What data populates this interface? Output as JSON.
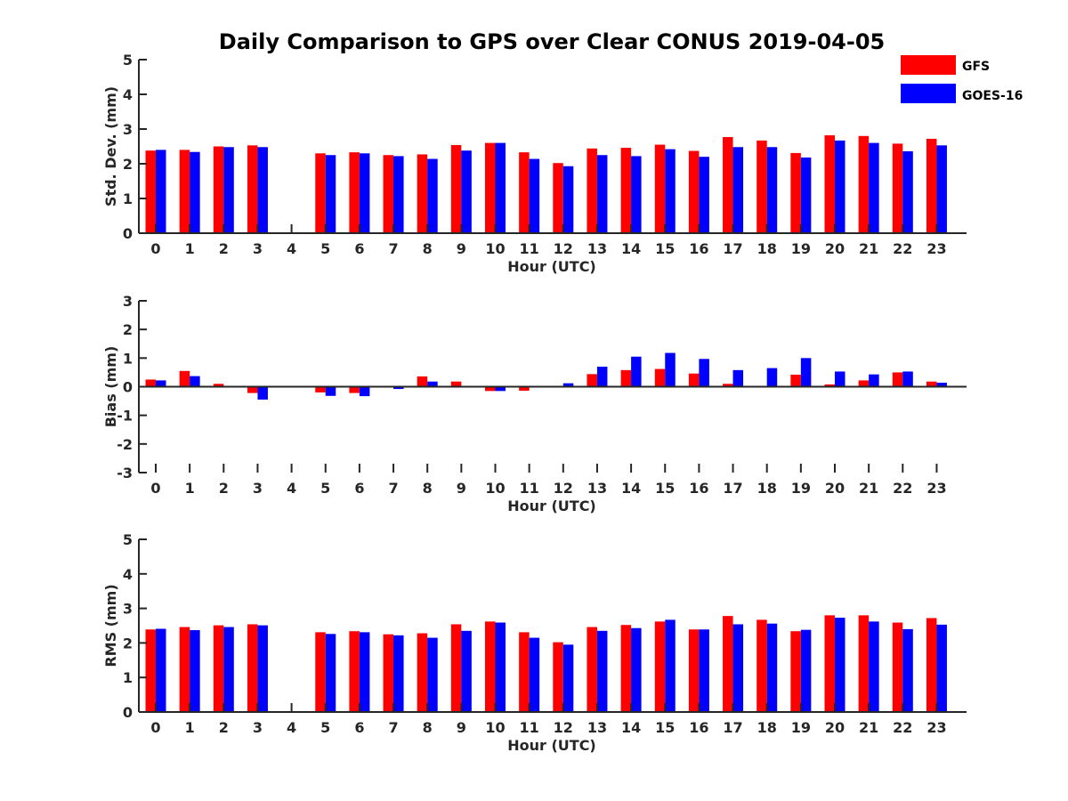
{
  "chart_data": {
    "type": "bar",
    "title": "Daily Comparison to GPS over Clear CONUS 2019-04-05",
    "legend": {
      "position": "top-right",
      "entries": [
        {
          "name": "GFS",
          "color": "#ff0000"
        },
        {
          "name": "GOES-16",
          "color": "#0000ff"
        }
      ]
    },
    "categories": [
      "0",
      "1",
      "2",
      "3",
      "4",
      "5",
      "6",
      "7",
      "8",
      "9",
      "10",
      "11",
      "12",
      "13",
      "14",
      "15",
      "16",
      "17",
      "18",
      "19",
      "20",
      "21",
      "22",
      "23"
    ],
    "panels": [
      {
        "id": "std",
        "xlabel": "Hour (UTC)",
        "ylabel": "Std. Dev. (mm)",
        "ylim": [
          0,
          5
        ],
        "yticks": [
          "0",
          "1",
          "2",
          "3",
          "4",
          "5"
        ],
        "series": [
          {
            "name": "GFS",
            "values": [
              2.38,
              2.4,
              2.5,
              2.53,
              null,
              2.3,
              2.33,
              2.25,
              2.27,
              2.54,
              2.6,
              2.33,
              2.02,
              2.44,
              2.46,
              2.55,
              2.37,
              2.77,
              2.67,
              2.31,
              2.82,
              2.8,
              2.58,
              2.72
            ]
          },
          {
            "name": "GOES-16",
            "values": [
              2.4,
              2.34,
              2.48,
              2.48,
              null,
              2.25,
              2.3,
              2.22,
              2.14,
              2.38,
              2.6,
              2.14,
              1.93,
              2.25,
              2.22,
              2.42,
              2.2,
              2.48,
              2.48,
              2.18,
              2.67,
              2.6,
              2.36,
              2.53
            ]
          }
        ]
      },
      {
        "id": "bias",
        "xlabel": "Hour (UTC)",
        "ylabel": "Bias (mm)",
        "ylim": [
          -3,
          3
        ],
        "yticks": [
          "-3",
          "-2",
          "-1",
          "0",
          "1",
          "2",
          "3"
        ],
        "series": [
          {
            "name": "GFS",
            "values": [
              0.25,
              0.55,
              0.1,
              -0.22,
              null,
              -0.2,
              -0.22,
              0.03,
              0.36,
              0.18,
              -0.15,
              -0.14,
              0.01,
              0.44,
              0.58,
              0.62,
              0.46,
              0.1,
              0.03,
              0.42,
              0.08,
              0.22,
              0.5,
              0.18
            ]
          },
          {
            "name": "GOES-16",
            "values": [
              0.22,
              0.37,
              -0.03,
              -0.45,
              null,
              -0.32,
              -0.33,
              -0.08,
              0.18,
              0.03,
              -0.15,
              -0.03,
              0.12,
              0.7,
              1.05,
              1.18,
              0.97,
              0.58,
              0.65,
              1.0,
              0.53,
              0.43,
              0.53,
              0.14
            ]
          }
        ]
      },
      {
        "id": "rms",
        "xlabel": "Hour (UTC)",
        "ylabel": "RMS (mm)",
        "ylim": [
          0,
          5
        ],
        "yticks": [
          "0",
          "1",
          "2",
          "3",
          "4",
          "5"
        ],
        "series": [
          {
            "name": "GFS",
            "values": [
              2.39,
              2.46,
              2.51,
              2.54,
              null,
              2.31,
              2.34,
              2.25,
              2.28,
              2.54,
              2.62,
              2.31,
              2.02,
              2.46,
              2.52,
              2.62,
              2.39,
              2.78,
              2.67,
              2.34,
              2.8,
              2.8,
              2.59,
              2.72
            ]
          },
          {
            "name": "GOES-16",
            "values": [
              2.41,
              2.37,
              2.46,
              2.51,
              null,
              2.26,
              2.31,
              2.22,
              2.15,
              2.35,
              2.59,
              2.15,
              1.95,
              2.35,
              2.43,
              2.67,
              2.39,
              2.54,
              2.56,
              2.38,
              2.73,
              2.62,
              2.4,
              2.53
            ]
          }
        ]
      }
    ]
  }
}
